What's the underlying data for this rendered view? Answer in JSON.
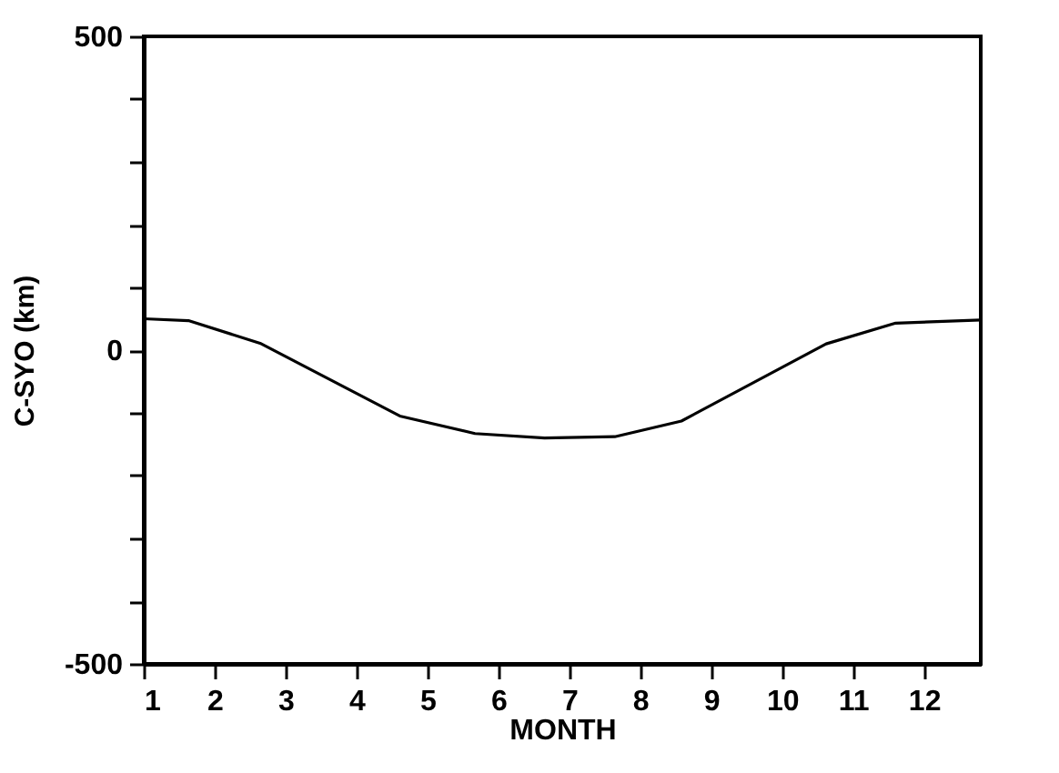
{
  "chart_data": {
    "type": "line",
    "xlabel": "MONTH",
    "ylabel": "C-SYO (km)",
    "x": [
      1,
      1.63,
      2.64,
      4.61,
      5.67,
      6.65,
      7.64,
      8.58,
      10.62,
      11.6,
      12.8
    ],
    "series": [
      {
        "color": "#000000",
        "values": [
          50,
          47,
          11,
          -105,
          -133,
          -140,
          -138,
          -113,
          10,
          43,
          48
        ]
      }
    ],
    "xlim": [
      1,
      12.8
    ],
    "xticks": [
      1,
      2,
      3,
      4,
      5,
      6,
      7,
      8,
      9,
      10,
      11,
      12
    ],
    "ylim": [
      -500,
      500
    ],
    "yticks": [
      -500,
      {
        "value": -400,
        "label": null
      },
      {
        "value": -300,
        "label": null
      },
      {
        "value": -200,
        "label": null
      },
      {
        "value": -100,
        "label": null
      },
      0,
      {
        "value": 100,
        "label": null
      },
      {
        "value": 200,
        "label": null
      },
      {
        "value": 300,
        "label": null
      },
      {
        "value": 400,
        "label": null
      },
      500
    ],
    "grid": false,
    "marker": "none",
    "line_style": "solid"
  }
}
